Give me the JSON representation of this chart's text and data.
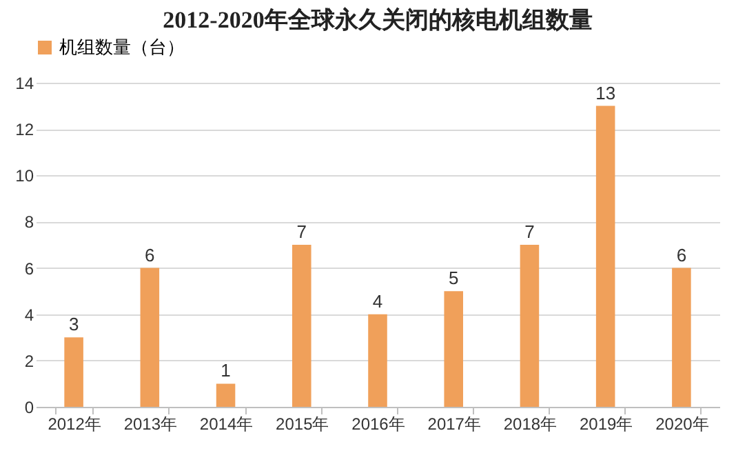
{
  "chart_data": {
    "type": "bar",
    "title": "2012-2020年全球永久关闭的核电机组数量",
    "categories": [
      "2012年",
      "2013年",
      "2014年",
      "2015年",
      "2016年",
      "2017年",
      "2018年",
      "2019年",
      "2020年"
    ],
    "series": [
      {
        "name": "机组数量（台）",
        "color": "#f0a05a",
        "values": [
          3,
          6,
          1,
          7,
          4,
          5,
          7,
          13,
          6
        ]
      }
    ],
    "ylim": [
      0,
      14
    ],
    "yticks": [
      0,
      2,
      4,
      6,
      8,
      10,
      12,
      14
    ],
    "grid": "y",
    "legend": "top",
    "data_labels": true
  }
}
